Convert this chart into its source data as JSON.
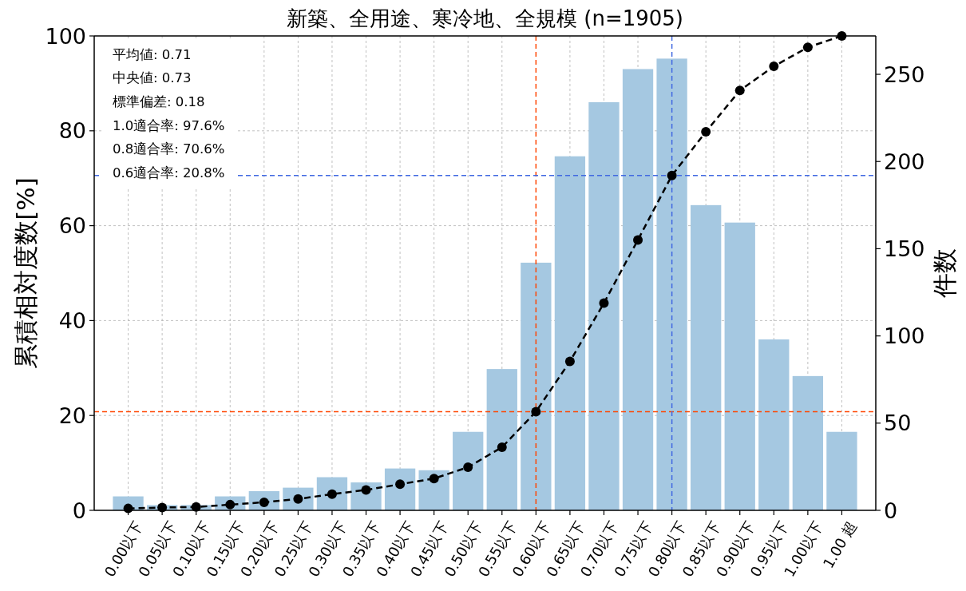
{
  "chart_data": {
    "type": "bar",
    "title": "新築、全用途、寒冷地、全規模 (n=1905)",
    "ylabel": "累積相対度数[%]",
    "y2label": "件数",
    "categories": [
      "0.00以下",
      "0.05以下",
      "0.10以下",
      "0.15以下",
      "0.20以下",
      "0.25以下",
      "0.30以下",
      "0.35以下",
      "0.40以下",
      "0.45以下",
      "0.50以下",
      "0.55以下",
      "0.60以下",
      "0.65以下",
      "0.70以下",
      "0.75以下",
      "0.80以下",
      "0.85以下",
      "0.90以下",
      "0.95以下",
      "1.00以下",
      "1.00 超"
    ],
    "series": [
      {
        "axis": "y2",
        "color": "#a5c8e1",
        "values": [
          8,
          3,
          3,
          8,
          11,
          13,
          19,
          16,
          24,
          23,
          45,
          81,
          142,
          203,
          234,
          253,
          259,
          175,
          165,
          98,
          77,
          45
        ]
      },
      {
        "type": "line",
        "color": "#000000",
        "marker": "circle",
        "line_style": "dashed",
        "values": [
          0.4,
          0.6,
          0.7,
          1.2,
          1.7,
          2.4,
          3.4,
          4.3,
          5.5,
          6.7,
          9.1,
          13.3,
          20.8,
          31.4,
          43.7,
          57.0,
          70.6,
          79.8,
          88.5,
          93.6,
          97.6,
          100
        ]
      }
    ],
    "ylim": [
      0,
      100
    ],
    "yticks": [
      0,
      20,
      40,
      60,
      80,
      100
    ],
    "y2lim": [
      0,
      272
    ],
    "y2ticks": [
      0,
      50,
      100,
      150,
      200,
      250
    ],
    "ref_lines": [
      {
        "axis": "y",
        "value": 20.8,
        "color": "#ff4500",
        "line_style": "dashed"
      },
      {
        "axis": "x",
        "value": "0.60以下",
        "color": "#ff4500",
        "line_style": "dashed"
      },
      {
        "axis": "y",
        "value": 70.6,
        "color": "#4169e1",
        "line_style": "dashed"
      },
      {
        "axis": "x",
        "value": "0.80以下",
        "color": "#4169e1",
        "line_style": "dashed"
      }
    ],
    "annotations": [
      "平均値: 0.71",
      "中央値: 0.73",
      "標準偏差: 0.18",
      "1.0適合率: 97.6%",
      "0.8適合率: 70.6%",
      "0.6適合率: 20.8%"
    ],
    "grid": true
  }
}
